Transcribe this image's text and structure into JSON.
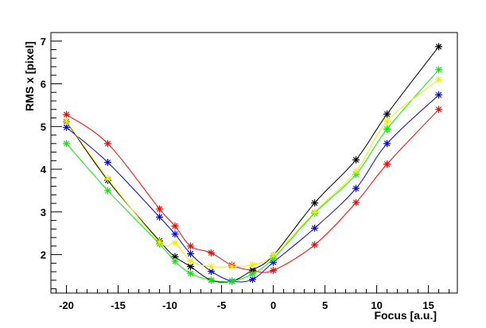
{
  "chart_data": {
    "type": "line",
    "xlabel": "Focus [a.u.]",
    "ylabel": "RMS x [pixel]",
    "xlim": [
      -21.5,
      17.8
    ],
    "ylim": [
      1.1,
      7.2
    ],
    "xticks": [
      -20,
      -15,
      -10,
      -5,
      0,
      5,
      10,
      15
    ],
    "yticks": [
      2,
      3,
      4,
      5,
      6,
      7
    ],
    "grid": false,
    "legend": "none",
    "x": [
      -20,
      -16,
      -11,
      -9.5,
      -8,
      -6,
      -4,
      -2,
      0,
      4,
      8,
      11,
      16
    ],
    "series": [
      {
        "color": "#ff0000",
        "values": [
          5.28,
          4.6,
          3.07,
          2.67,
          2.2,
          2.04,
          1.75,
          1.63,
          1.63,
          2.23,
          3.22,
          4.12,
          5.4
        ]
      },
      {
        "color": "#000000",
        "values": [
          5.12,
          3.74,
          2.32,
          1.95,
          1.72,
          1.4,
          1.38,
          1.64,
          1.98,
          3.21,
          4.22,
          5.29,
          6.87
        ]
      },
      {
        "color": "#0000ff",
        "values": [
          4.98,
          4.16,
          2.88,
          2.48,
          2.02,
          1.61,
          1.38,
          1.42,
          1.82,
          2.62,
          3.55,
          4.6,
          5.74
        ]
      },
      {
        "color": "#00ee00",
        "values": [
          4.6,
          3.5,
          2.25,
          1.84,
          1.56,
          1.4,
          1.38,
          1.55,
          1.91,
          2.97,
          3.88,
          4.94,
          6.33
        ]
      },
      {
        "color": "#eeee00",
        "values": [
          5.13,
          3.78,
          2.3,
          2.27,
          1.85,
          1.72,
          1.72,
          1.76,
          1.98,
          3.0,
          3.95,
          5.12,
          6.1
        ]
      }
    ]
  }
}
